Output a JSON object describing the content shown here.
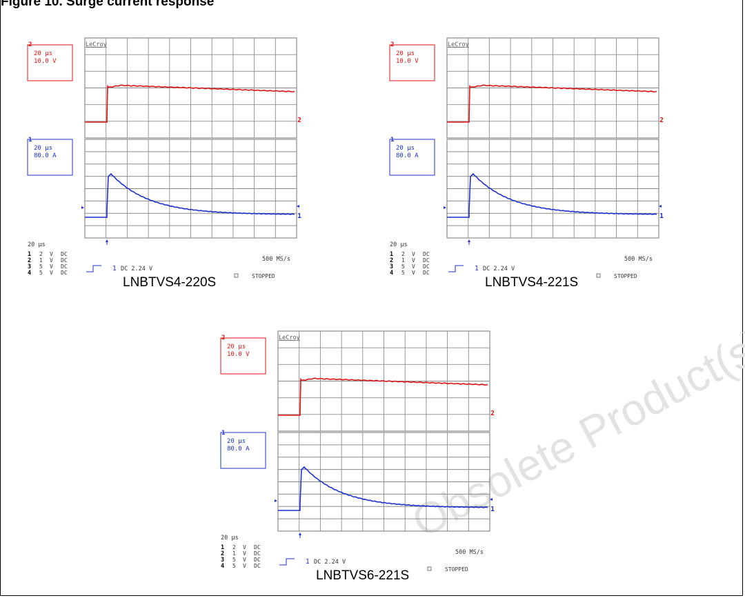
{
  "caption": "Figure 10. Surge current response",
  "panels": [
    {
      "id": "a",
      "name": "LNBTVS4-220S",
      "brand": "LeCroy",
      "ch2": {
        "num": "2",
        "time": "20 µs",
        "scale": "10.0 V"
      },
      "ch1": {
        "num": "1",
        "time": "20 µs",
        "scale": "80.0 A"
      },
      "timebase": "20 µs",
      "channels": [
        {
          "num": "1",
          "volts": "2",
          "unit": "V",
          "coupling": "DC"
        },
        {
          "num": "2",
          "volts": "1",
          "unit": "V",
          "coupling": "DC"
        },
        {
          "num": "3",
          "volts": "5",
          "unit": "V",
          "coupling": "DC"
        },
        {
          "num": "4",
          "volts": "5",
          "unit": "V",
          "coupling": "DC"
        }
      ],
      "trigger_channel": "1",
      "trigger_info": "DC 2.24 V",
      "sample_rate": "500 MS/s",
      "status": "STOPPED"
    },
    {
      "id": "b",
      "name": "LNBTVS4-221S",
      "brand": "LeCroy",
      "ch2": {
        "num": "2",
        "time": "20 µs",
        "scale": "10.0 V"
      },
      "ch1": {
        "num": "1",
        "time": "20 µs",
        "scale": "80.0 A"
      },
      "timebase": "20 µs",
      "channels": [
        {
          "num": "1",
          "volts": "2",
          "unit": "V",
          "coupling": "DC"
        },
        {
          "num": "2",
          "volts": "1",
          "unit": "V",
          "coupling": "DC"
        },
        {
          "num": "3",
          "volts": "5",
          "unit": "V",
          "coupling": "DC"
        },
        {
          "num": "4",
          "volts": "5",
          "unit": "V",
          "coupling": "DC"
        }
      ],
      "trigger_channel": "1",
      "trigger_info": "DC 2.24 V",
      "sample_rate": "500 MS/s",
      "status": "STOPPED"
    },
    {
      "id": "c",
      "name": "LNBTVS6-221S",
      "brand": "LeCroy",
      "ch2": {
        "num": "2",
        "time": "20 µs",
        "scale": "10.0 V"
      },
      "ch1": {
        "num": "1",
        "time": "20 µs",
        "scale": "80.0 A"
      },
      "timebase": "20 µs",
      "channels": [
        {
          "num": "1",
          "volts": "2",
          "unit": "V",
          "coupling": "DC"
        },
        {
          "num": "2",
          "volts": "1",
          "unit": "V",
          "coupling": "DC"
        },
        {
          "num": "3",
          "volts": "5",
          "unit": "V",
          "coupling": "DC"
        },
        {
          "num": "4",
          "volts": "5",
          "unit": "V",
          "coupling": "DC"
        }
      ],
      "trigger_channel": "1",
      "trigger_info": "DC 2.24 V",
      "sample_rate": "500 MS/s",
      "status": "STOPPED"
    }
  ],
  "watermark": "Obsolete Product(s)",
  "colors": {
    "voltage_trace": "#e01010",
    "current_trace": "#1a2fd0",
    "grid": "#8a8a8a"
  }
}
